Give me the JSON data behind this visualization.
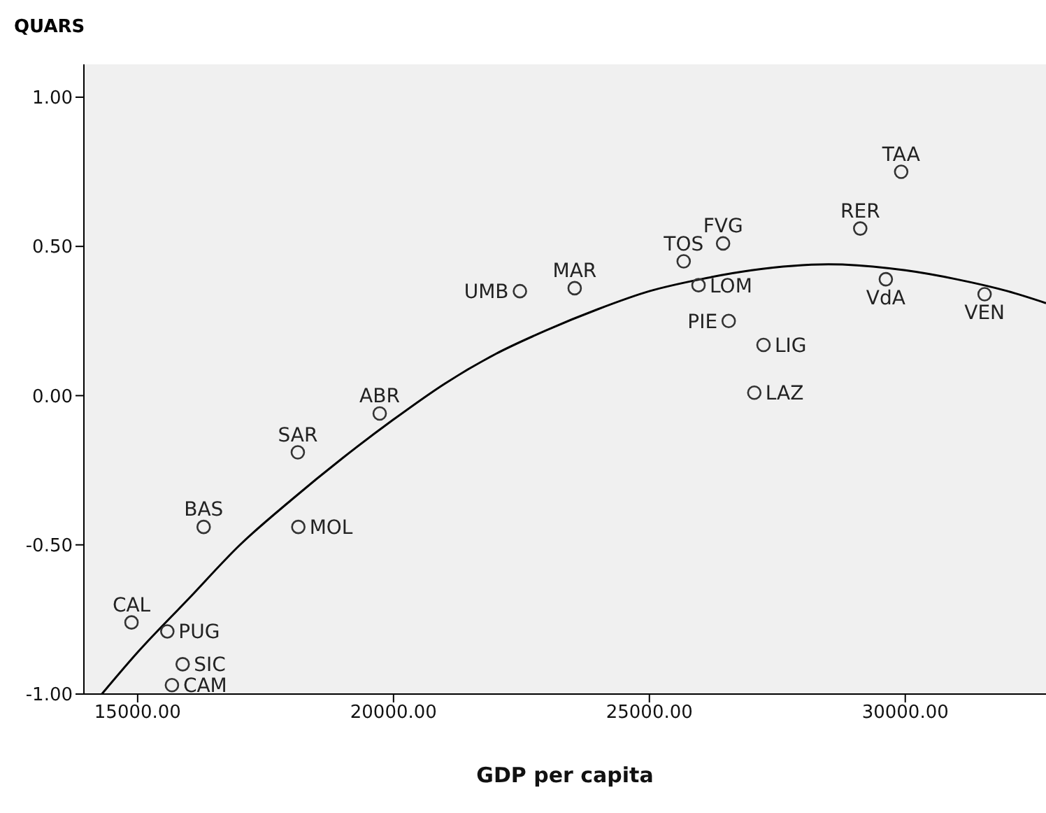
{
  "chart_data": {
    "type": "scatter",
    "title": "QUARS",
    "xlabel": "GDP per capita",
    "xlim": [
      13950,
      32750
    ],
    "ylim": [
      -1,
      1.11
    ],
    "xticks": [
      {
        "value": 15000,
        "label": "15000.00"
      },
      {
        "value": 20000,
        "label": "20000.00"
      },
      {
        "value": 25000,
        "label": "25000.00"
      },
      {
        "value": 30000,
        "label": "30000.00"
      }
    ],
    "yticks": [
      {
        "value": -1,
        "label": "-1.00"
      },
      {
        "value": -0.5,
        "label": "-0.50"
      },
      {
        "value": 0,
        "label": "0.00"
      },
      {
        "value": 0.5,
        "label": "0.50"
      },
      {
        "value": 1,
        "label": "1.00"
      }
    ],
    "grid": false,
    "legend": false,
    "marker": "circle",
    "series": [
      {
        "color": "#333333",
        "x": [
          14880,
          15580,
          15880,
          15670,
          16290,
          18130,
          18140,
          19730,
          22470,
          23540,
          25670,
          26440,
          25960,
          26550,
          27230,
          27050,
          29120,
          29920,
          29620,
          31550
        ],
        "values": [
          -0.76,
          -0.79,
          -0.9,
          -0.97,
          -0.44,
          -0.19,
          -0.44,
          -0.06,
          0.35,
          0.36,
          0.45,
          0.51,
          0.37,
          0.25,
          0.17,
          0.01,
          0.56,
          0.75,
          0.39,
          0.34
        ]
      },
      {
        "type": "line",
        "color": "#000000",
        "marker": "none",
        "line_style": "solid",
        "x": [
          14300,
          15000,
          16000,
          17000,
          18000,
          19000,
          20000,
          21000,
          22000,
          23000,
          24000,
          25000,
          26000,
          27000,
          28500,
          30000,
          31000,
          32000,
          32750
        ],
        "values": [
          -1.0,
          -0.86,
          -0.68,
          -0.5,
          -0.35,
          -0.21,
          -0.08,
          0.04,
          0.14,
          0.22,
          0.29,
          0.35,
          0.39,
          0.42,
          0.44,
          0.42,
          0.39,
          0.35,
          0.31
        ]
      }
    ],
    "annotations": [
      {
        "text": "CAL",
        "x": 14880,
        "y": -0.76
      },
      {
        "text": "PUG",
        "x": 15580,
        "y": -0.79
      },
      {
        "text": "SIC",
        "x": 15880,
        "y": -0.9
      },
      {
        "text": "CAM",
        "x": 15670,
        "y": -0.97
      },
      {
        "text": "BAS",
        "x": 16290,
        "y": -0.44
      },
      {
        "text": "SAR",
        "x": 18130,
        "y": -0.19
      },
      {
        "text": "MOL",
        "x": 18140,
        "y": -0.44
      },
      {
        "text": "ABR",
        "x": 19730,
        "y": -0.06
      },
      {
        "text": "UMB",
        "x": 22470,
        "y": 0.35
      },
      {
        "text": "MAR",
        "x": 23540,
        "y": 0.36
      },
      {
        "text": "TOS",
        "x": 25670,
        "y": 0.45
      },
      {
        "text": "FVG",
        "x": 26440,
        "y": 0.51
      },
      {
        "text": "LOM",
        "x": 25960,
        "y": 0.37
      },
      {
        "text": "PIE",
        "x": 26550,
        "y": 0.25
      },
      {
        "text": "LIG",
        "x": 27230,
        "y": 0.17
      },
      {
        "text": "LAZ",
        "x": 27050,
        "y": 0.01
      },
      {
        "text": "RER",
        "x": 29120,
        "y": 0.56
      },
      {
        "text": "TAA",
        "x": 29920,
        "y": 0.75
      },
      {
        "text": "VdA",
        "x": 29620,
        "y": 0.39
      },
      {
        "text": "VEN",
        "x": 31550,
        "y": 0.34
      }
    ]
  }
}
